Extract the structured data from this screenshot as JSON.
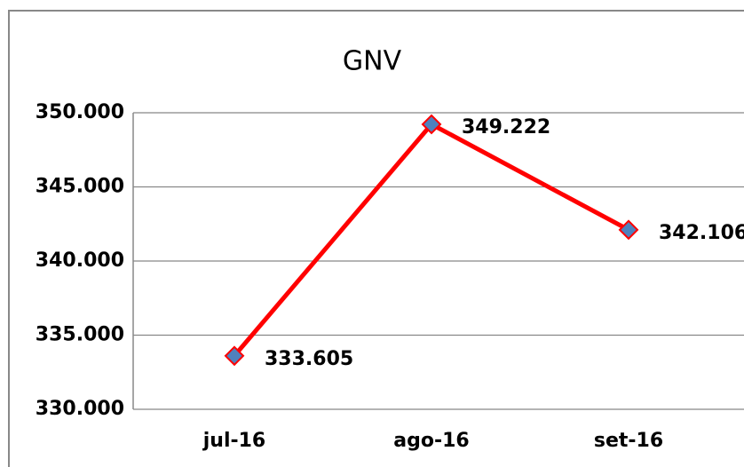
{
  "chart_data": {
    "type": "line",
    "title": "GNV",
    "categories": [
      "jul-16",
      "ago-16",
      "set-16"
    ],
    "series": [
      {
        "name": "GNV",
        "color": "#ff0000",
        "marker_color": "#4f81bd",
        "values": [
          333605,
          349222,
          342106
        ],
        "value_labels": [
          "333.605",
          "349.222",
          "342.106"
        ]
      }
    ],
    "ylim": [
      330000,
      350000
    ],
    "yticks": [
      {
        "value": 330000,
        "label": "330.000"
      },
      {
        "value": 335000,
        "label": "335.000"
      },
      {
        "value": 340000,
        "label": "340.000"
      },
      {
        "value": 345000,
        "label": "345.000"
      },
      {
        "value": 350000,
        "label": "350.000"
      }
    ],
    "grid": true
  }
}
